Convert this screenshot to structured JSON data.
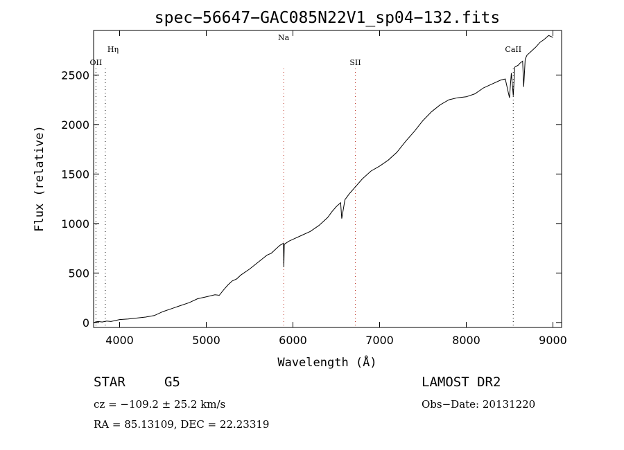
{
  "chart_data": {
    "type": "line",
    "title": "spec−56647−GAC085N22V1_sp04−132.fits",
    "xlabel": "Wavelength (Å)",
    "ylabel": "Flux (relative)",
    "xlim": [
      3700,
      9100
    ],
    "ylim": [
      -50,
      2950
    ],
    "xticks": [
      4000,
      5000,
      6000,
      7000,
      8000,
      9000
    ],
    "yticks": [
      0,
      500,
      1000,
      1500,
      2000,
      2500
    ],
    "grid": false,
    "series": [
      {
        "x": [
          3700,
          3750,
          3800,
          3850,
          3900,
          3950,
          4000,
          4100,
          4200,
          4300,
          4400,
          4500,
          4600,
          4700,
          4800,
          4900,
          5000,
          5100,
          5150,
          5200,
          5250,
          5300,
          5350,
          5400,
          5500,
          5600,
          5700,
          5750,
          5800,
          5850,
          5890,
          5895,
          5900,
          5950,
          6000,
          6100,
          6200,
          6300,
          6400,
          6450,
          6500,
          6550,
          6563,
          6600,
          6650,
          6700,
          6800,
          6900,
          7000,
          7100,
          7200,
          7300,
          7400,
          7500,
          7600,
          7700,
          7800,
          7900,
          8000,
          8100,
          8200,
          8300,
          8400,
          8450,
          8498,
          8520,
          8542,
          8560,
          8600,
          8620,
          8650,
          8662,
          8680,
          8700,
          8750,
          8800,
          8850,
          8900,
          8950,
          9000
        ],
        "y": [
          0,
          10,
          5,
          15,
          10,
          20,
          30,
          35,
          45,
          55,
          70,
          110,
          140,
          170,
          200,
          240,
          260,
          280,
          275,
          330,
          380,
          420,
          440,
          480,
          540,
          610,
          680,
          700,
          740,
          780,
          800,
          560,
          790,
          820,
          840,
          880,
          920,
          980,
          1060,
          1120,
          1170,
          1210,
          1050,
          1240,
          1300,
          1350,
          1450,
          1530,
          1580,
          1640,
          1720,
          1830,
          1930,
          2040,
          2130,
          2200,
          2250,
          2270,
          2280,
          2310,
          2370,
          2410,
          2450,
          2460,
          2270,
          2520,
          2290,
          2580,
          2600,
          2620,
          2640,
          2380,
          2660,
          2700,
          2740,
          2780,
          2830,
          2860,
          2900,
          2880
        ]
      }
    ],
    "line_markers": [
      {
        "label": "Hη",
        "x": 3835,
        "color": "#000000"
      },
      {
        "label": "OII",
        "x": 3727,
        "color": "#000000"
      },
      {
        "label": "Na",
        "x": 5893,
        "color": "#c0392b"
      },
      {
        "label": "SII",
        "x": 6720,
        "color": "#c0392b"
      },
      {
        "label": "CaII",
        "x": 8542,
        "color": "#000000"
      }
    ]
  },
  "info": {
    "object_class": "STAR",
    "subclass": "G5",
    "survey": "LAMOST DR2",
    "redshift": "cz = −109.2 ± 25.2 km/s",
    "obs_date": "Obs−Date: 20131220",
    "coords": "RA =  85.13109, DEC =  22.23319"
  }
}
